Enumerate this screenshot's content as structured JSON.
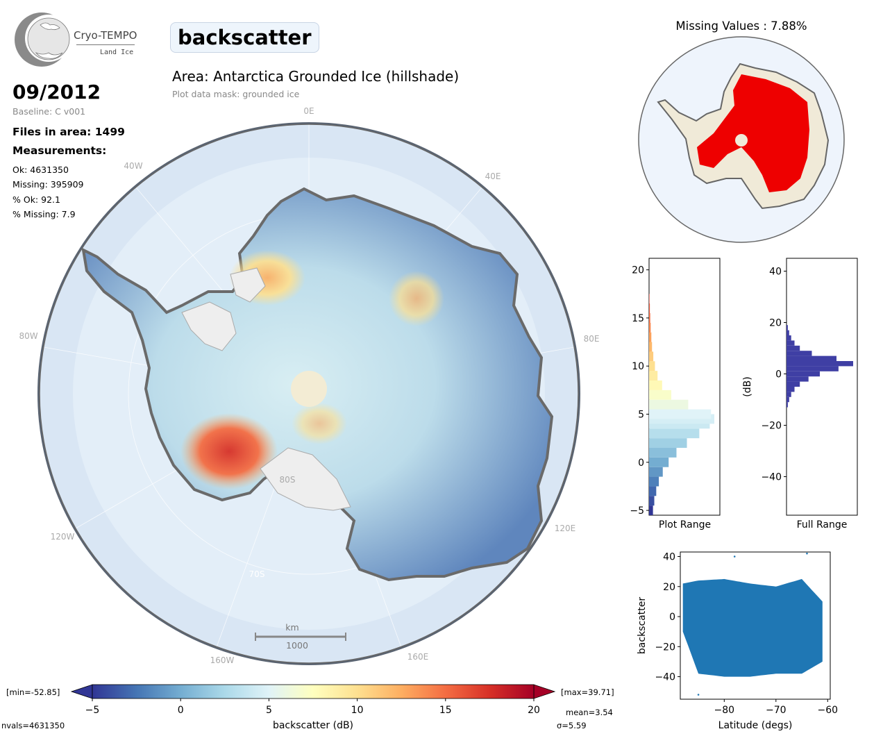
{
  "logo": {
    "name": "Cryo-TEMPO",
    "sub": "Land Ice"
  },
  "variable": "backscatter",
  "area_title": "Area: Antarctica Grounded Ice (hillshade)",
  "mask_note": "Plot data mask: grounded ice",
  "date": "09/2012",
  "baseline": "Baseline: C v001",
  "files": "Files in area: 1499",
  "measurements_header": "Measurements:",
  "stats": [
    "Ok: 4631350",
    "Missing: 395909",
    "% Ok: 92.1",
    "% Missing: 7.9"
  ],
  "missing_title": "Missing Values : 7.88%",
  "map": {
    "lon_labels": [
      "0E",
      "40E",
      "80E",
      "120E",
      "160E",
      "160W",
      "120W",
      "80W",
      "40W"
    ],
    "lat_labels": [
      "80S",
      "70S"
    ],
    "scalebar_unit": "km",
    "scalebar_value": "1000"
  },
  "colorbar": {
    "label": "backscatter (dB)",
    "ticks": [
      "−5",
      "0",
      "5",
      "10",
      "15",
      "20"
    ],
    "min_label": "[min=-52.85]",
    "max_label": "[max=39.71]",
    "nvals": "nvals=4631350",
    "mean": "mean=3.54",
    "sigma": "σ=5.59",
    "colors": [
      "#313695",
      "#4575b4",
      "#74add1",
      "#abd9e9",
      "#e0f3f8",
      "#ffffbf",
      "#fee090",
      "#fdae61",
      "#f46d43",
      "#d73027",
      "#a50026"
    ]
  },
  "chart_data": [
    {
      "type": "bar",
      "orientation": "horizontal",
      "title": "Plot Range",
      "xlabel": "Plot Range",
      "ylim": [
        -5.5,
        21.2
      ],
      "yticks": [
        "−5",
        "0",
        "5",
        "10",
        "15",
        "20"
      ],
      "bins_center": [
        -5,
        -4,
        -3,
        -2,
        -1,
        0,
        1,
        2,
        3,
        4,
        4.5,
        5,
        6,
        7,
        8,
        9,
        10,
        11,
        12,
        13,
        14,
        15,
        16,
        17
      ],
      "counts_relative": [
        0.06,
        0.08,
        0.11,
        0.15,
        0.21,
        0.3,
        0.42,
        0.58,
        0.77,
        0.93,
        1.0,
        0.95,
        0.6,
        0.34,
        0.2,
        0.13,
        0.09,
        0.065,
        0.045,
        0.035,
        0.025,
        0.018,
        0.012,
        0.006
      ]
    },
    {
      "type": "bar",
      "orientation": "horizontal",
      "title": "Full Range",
      "xlabel": "Full Range",
      "ylabel": "(dB)",
      "ylim": [
        -55,
        45
      ],
      "yticks": [
        "−40",
        "−20",
        "0",
        "20",
        "40"
      ],
      "color": "#3f3fa4",
      "bins_center": [
        -12,
        -10,
        -8,
        -6,
        -4,
        -2,
        0,
        2,
        4,
        6,
        8,
        10,
        12,
        14,
        16,
        18
      ],
      "counts_relative": [
        0.02,
        0.04,
        0.07,
        0.12,
        0.2,
        0.33,
        0.5,
        0.78,
        1.0,
        0.75,
        0.38,
        0.2,
        0.12,
        0.07,
        0.04,
        0.02
      ]
    },
    {
      "type": "scatter",
      "xlabel": "Latitude (degs)",
      "ylabel": "backscatter",
      "xlim": [
        -88.5,
        -59.5
      ],
      "ylim": [
        -55,
        43
      ],
      "xticks": [
        "−80",
        "−70",
        "−60"
      ],
      "yticks": [
        "−40",
        "−20",
        "0",
        "20",
        "40"
      ],
      "color": "#1f77b4",
      "x_range": [
        -88,
        -61
      ],
      "y_band_low_by_lat": [
        [
          -88,
          -10
        ],
        [
          -85,
          -38
        ],
        [
          -80,
          -40
        ],
        [
          -75,
          -40
        ],
        [
          -70,
          -38
        ],
        [
          -65,
          -38
        ],
        [
          -61,
          -30
        ]
      ],
      "y_band_high_by_lat": [
        [
          -88,
          22
        ],
        [
          -85,
          24
        ],
        [
          -80,
          25
        ],
        [
          -75,
          22
        ],
        [
          -70,
          20
        ],
        [
          -65,
          25
        ],
        [
          -61,
          10
        ]
      ],
      "outliers": [
        [
          -78,
          40
        ],
        [
          -85,
          -52
        ],
        [
          -64,
          42
        ]
      ]
    }
  ]
}
